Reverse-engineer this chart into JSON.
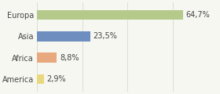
{
  "categories": [
    "Europa",
    "Asia",
    "Africa",
    "America"
  ],
  "values": [
    64.7,
    23.5,
    8.8,
    2.9
  ],
  "labels": [
    "64,7%",
    "23,5%",
    "8,8%",
    "2,9%"
  ],
  "bar_colors": [
    "#b5c98a",
    "#6d8ebf",
    "#e8a97e",
    "#e8d87e"
  ],
  "background_color": "#f7f7f2",
  "xlim": [
    0,
    78
  ],
  "bar_height": 0.45,
  "text_fontsize": 7.0,
  "label_fontsize": 7.0,
  "grid_color": "#d8d8d0",
  "grid_xticks": [
    0,
    20,
    40,
    60,
    80
  ]
}
